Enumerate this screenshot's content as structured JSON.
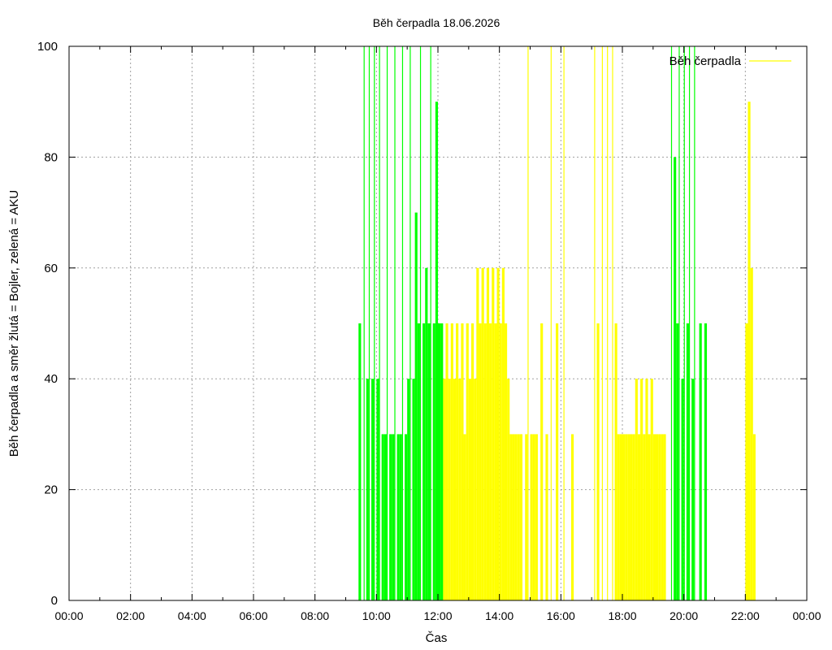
{
  "chart_data": {
    "type": "bar",
    "title": "Běh čerpadla 18.06.2026",
    "xlabel": "Čas",
    "ylabel": "Běh čerpadla a směr žlutá = Bojler, zelená = AKU",
    "ylim": [
      0,
      100
    ],
    "xlim": [
      "00:00",
      "24:00"
    ],
    "x_ticks": [
      "00:00",
      "02:00",
      "04:00",
      "06:00",
      "08:00",
      "10:00",
      "12:00",
      "14:00",
      "16:00",
      "18:00",
      "20:00",
      "22:00",
      "00:00"
    ],
    "y_ticks": [
      0,
      20,
      40,
      60,
      80,
      100
    ],
    "grid": true,
    "legend": {
      "position": "top-right",
      "entries": [
        "Běh čerpadla"
      ]
    },
    "colors": {
      "bojler": "#ffff00",
      "aku": "#00ff00"
    },
    "series": [
      {
        "name": "Běh čerpadla",
        "direction": "Bojler",
        "color": "#ffff00",
        "points": [
          [
            "12:05",
            50
          ],
          [
            "12:10",
            40
          ],
          [
            "12:15",
            50
          ],
          [
            "12:20",
            40
          ],
          [
            "12:25",
            50
          ],
          [
            "12:30",
            40
          ],
          [
            "12:35",
            50
          ],
          [
            "12:40",
            40
          ],
          [
            "12:45",
            50
          ],
          [
            "12:50",
            30
          ],
          [
            "12:55",
            50
          ],
          [
            "13:00",
            40
          ],
          [
            "13:05",
            50
          ],
          [
            "13:10",
            40
          ],
          [
            "13:15",
            60
          ],
          [
            "13:20",
            50
          ],
          [
            "13:25",
            60
          ],
          [
            "13:30",
            50
          ],
          [
            "13:35",
            60
          ],
          [
            "13:40",
            50
          ],
          [
            "13:45",
            60
          ],
          [
            "13:50",
            50
          ],
          [
            "13:55",
            60
          ],
          [
            "14:00",
            50
          ],
          [
            "14:05",
            60
          ],
          [
            "14:10",
            50
          ],
          [
            "14:15",
            40
          ],
          [
            "14:20",
            30
          ],
          [
            "14:25",
            30
          ],
          [
            "14:30",
            30
          ],
          [
            "14:35",
            30
          ],
          [
            "14:40",
            30
          ],
          [
            "14:50",
            30
          ],
          [
            "14:55",
            100
          ],
          [
            "15:00",
            30
          ],
          [
            "15:05",
            30
          ],
          [
            "15:10",
            30
          ],
          [
            "15:20",
            50
          ],
          [
            "15:30",
            30
          ],
          [
            "15:40",
            100
          ],
          [
            "15:50",
            50
          ],
          [
            "16:05",
            100
          ],
          [
            "16:20",
            30
          ],
          [
            "17:05",
            100
          ],
          [
            "17:10",
            50
          ],
          [
            "17:20",
            100
          ],
          [
            "17:30",
            100
          ],
          [
            "17:40",
            100
          ],
          [
            "17:45",
            50
          ],
          [
            "17:50",
            30
          ],
          [
            "17:55",
            30
          ],
          [
            "18:00",
            30
          ],
          [
            "18:05",
            30
          ],
          [
            "18:10",
            30
          ],
          [
            "18:15",
            30
          ],
          [
            "18:20",
            30
          ],
          [
            "18:25",
            40
          ],
          [
            "18:30",
            30
          ],
          [
            "18:35",
            40
          ],
          [
            "18:40",
            30
          ],
          [
            "18:45",
            40
          ],
          [
            "18:50",
            30
          ],
          [
            "18:55",
            40
          ],
          [
            "19:00",
            30
          ],
          [
            "19:05",
            30
          ],
          [
            "19:10",
            30
          ],
          [
            "19:15",
            30
          ],
          [
            "19:20",
            30
          ],
          [
            "22:00",
            50
          ],
          [
            "22:05",
            90
          ],
          [
            "22:10",
            60
          ],
          [
            "22:15",
            30
          ]
        ]
      },
      {
        "name": "",
        "direction": "AKU",
        "color": "#00ff00",
        "points": [
          [
            "09:25",
            50
          ],
          [
            "09:35",
            100
          ],
          [
            "09:40",
            40
          ],
          [
            "09:45",
            100
          ],
          [
            "09:50",
            40
          ],
          [
            "09:55",
            100
          ],
          [
            "10:00",
            40
          ],
          [
            "10:05",
            100
          ],
          [
            "10:10",
            30
          ],
          [
            "10:15",
            30
          ],
          [
            "10:20",
            100
          ],
          [
            "10:25",
            30
          ],
          [
            "10:30",
            30
          ],
          [
            "10:35",
            100
          ],
          [
            "10:40",
            30
          ],
          [
            "10:45",
            30
          ],
          [
            "10:50",
            100
          ],
          [
            "10:55",
            30
          ],
          [
            "11:00",
            40
          ],
          [
            "11:05",
            100
          ],
          [
            "11:10",
            40
          ],
          [
            "11:15",
            70
          ],
          [
            "11:20",
            50
          ],
          [
            "11:25",
            100
          ],
          [
            "11:30",
            50
          ],
          [
            "11:35",
            60
          ],
          [
            "11:40",
            50
          ],
          [
            "11:45",
            100
          ],
          [
            "11:50",
            50
          ],
          [
            "11:55",
            90
          ],
          [
            "12:00",
            50
          ],
          [
            "12:05",
            50
          ],
          [
            "19:35",
            100
          ],
          [
            "19:40",
            80
          ],
          [
            "19:45",
            50
          ],
          [
            "19:50",
            100
          ],
          [
            "19:55",
            40
          ],
          [
            "20:00",
            100
          ],
          [
            "20:05",
            50
          ],
          [
            "20:10",
            100
          ],
          [
            "20:15",
            40
          ],
          [
            "20:20",
            100
          ],
          [
            "20:30",
            50
          ],
          [
            "20:40",
            50
          ]
        ]
      }
    ]
  }
}
